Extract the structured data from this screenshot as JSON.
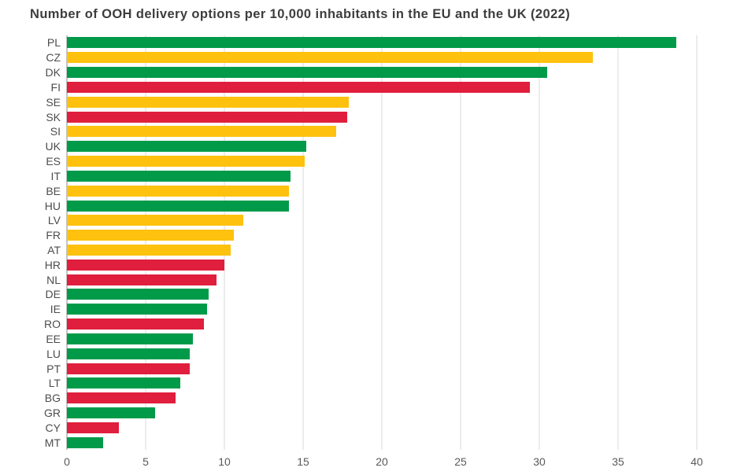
{
  "chart_data": {
    "type": "bar",
    "orientation": "horizontal",
    "title": "Number of OOH delivery options per 10,000 inhabitants in the EU and the UK (2022)",
    "categories": [
      "PL",
      "CZ",
      "DK",
      "FI",
      "SE",
      "SK",
      "SI",
      "UK",
      "ES",
      "IT",
      "BE",
      "HU",
      "LV",
      "FR",
      "AT",
      "HR",
      "NL",
      "DE",
      "IE",
      "RO",
      "EE",
      "LU",
      "PT",
      "LT",
      "BG",
      "GR",
      "CY",
      "MT"
    ],
    "values": [
      38.7,
      33.4,
      30.5,
      29.4,
      17.9,
      17.8,
      17.1,
      15.2,
      15.1,
      14.2,
      14.1,
      14.1,
      11.2,
      10.6,
      10.4,
      10.0,
      9.5,
      9.0,
      8.9,
      8.7,
      8.0,
      7.8,
      7.8,
      7.2,
      6.9,
      5.6,
      3.3,
      2.3
    ],
    "bar_colors": [
      "green",
      "yellow",
      "green",
      "red",
      "yellow",
      "red",
      "yellow",
      "green",
      "yellow",
      "green",
      "yellow",
      "green",
      "yellow",
      "yellow",
      "yellow",
      "red",
      "red",
      "green",
      "green",
      "red",
      "green",
      "green",
      "red",
      "green",
      "red",
      "green",
      "red",
      "green"
    ],
    "palette": {
      "green": "#009a49",
      "yellow": "#fec10e",
      "red": "#e01e3d"
    },
    "xlabel": "",
    "ylabel": "",
    "xlim": [
      0,
      40
    ],
    "x_ticks": [
      0,
      5,
      10,
      15,
      20,
      25,
      30,
      35,
      40
    ],
    "grid": true,
    "legend": false,
    "colors": {
      "title_text": "#3d3d3d",
      "axis_text": "#595959",
      "category_text": "#4d4d4d",
      "gridline": "#d9d9d9",
      "zero_axis_line": "#8a8a8a",
      "background": "#ffffff"
    }
  }
}
